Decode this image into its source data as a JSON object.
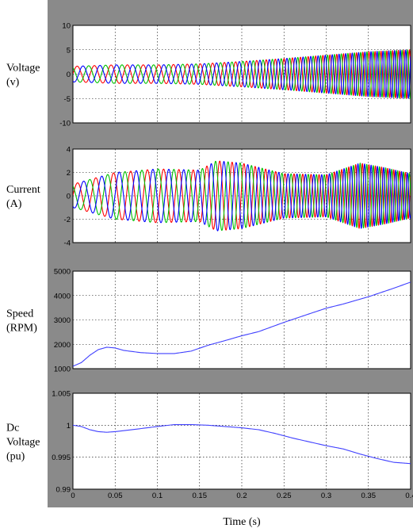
{
  "figure": {
    "xlabel": "Time (s)"
  },
  "colors": {
    "scope_background": "#8a8a8a",
    "phase_a": "#ff0000",
    "phase_b": "#00c000",
    "phase_c": "#0000ff",
    "single_trace": "#4040ff"
  },
  "chart_data": [
    {
      "type": "line",
      "ylabel_lines": [
        "Voltage",
        "(v)"
      ],
      "xlim": [
        0,
        0.4
      ],
      "ylim": [
        -10,
        10
      ],
      "yticks": [
        10,
        5,
        0,
        -5,
        -10
      ],
      "xticks": [],
      "grid": true,
      "description_kind": "three-phase sinusoid",
      "series": [
        {
          "color": "#ff0000",
          "phase_deg": 0
        },
        {
          "color": "#00c000",
          "phase_deg": 120
        },
        {
          "color": "#0000ff",
          "phase_deg": 240
        }
      ],
      "envelope": {
        "t": [
          0,
          0.05,
          0.1,
          0.15,
          0.2,
          0.25,
          0.3,
          0.35,
          0.4
        ],
        "amp": [
          1.6,
          1.9,
          1.9,
          2.1,
          2.6,
          3.2,
          3.9,
          4.6,
          5.0
        ]
      },
      "frequency": {
        "t": [
          0,
          0.1,
          0.2,
          0.3,
          0.4
        ],
        "hz": [
          48,
          55,
          78,
          120,
          155
        ]
      }
    },
    {
      "type": "line",
      "ylabel_lines": [
        "Current",
        "(A)"
      ],
      "xlim": [
        0,
        0.4
      ],
      "ylim": [
        -4,
        4
      ],
      "yticks": [
        4,
        2,
        0,
        -2,
        -4
      ],
      "xticks": [],
      "grid": true,
      "description_kind": "three-phase sinusoid",
      "series": [
        {
          "color": "#ff0000",
          "phase_deg": 0
        },
        {
          "color": "#00c000",
          "phase_deg": 120
        },
        {
          "color": "#0000ff",
          "phase_deg": 240
        }
      ],
      "envelope": {
        "t": [
          0,
          0.02,
          0.05,
          0.1,
          0.15,
          0.17,
          0.2,
          0.25,
          0.3,
          0.34,
          0.37,
          0.4
        ],
        "amp": [
          1.0,
          1.4,
          2.0,
          2.3,
          2.2,
          3.0,
          2.8,
          1.9,
          1.8,
          2.8,
          2.4,
          1.9
        ]
      },
      "frequency": {
        "t": [
          0,
          0.1,
          0.2,
          0.3,
          0.4
        ],
        "hz": [
          45,
          52,
          72,
          110,
          150
        ]
      }
    },
    {
      "type": "line",
      "ylabel_lines": [
        "Speed",
        "(RPM)"
      ],
      "xlim": [
        0,
        0.4
      ],
      "ylim": [
        1000,
        5000
      ],
      "yticks": [
        5000,
        4000,
        3000,
        2000,
        1000
      ],
      "xticks": [],
      "grid": true,
      "series": [
        {
          "color": "#4040ff",
          "x": [
            0,
            0.01,
            0.02,
            0.03,
            0.04,
            0.05,
            0.06,
            0.08,
            0.1,
            0.12,
            0.14,
            0.16,
            0.18,
            0.2,
            0.22,
            0.25,
            0.28,
            0.3,
            0.32,
            0.35,
            0.38,
            0.4
          ],
          "y": [
            1100,
            1250,
            1550,
            1780,
            1880,
            1850,
            1750,
            1660,
            1620,
            1620,
            1720,
            1960,
            2150,
            2350,
            2520,
            2900,
            3250,
            3480,
            3650,
            3950,
            4300,
            4550
          ]
        }
      ]
    },
    {
      "type": "line",
      "ylabel_lines": [
        "Dc",
        "Voltage",
        "(pu)"
      ],
      "xlim": [
        0,
        0.4
      ],
      "ylim": [
        0.99,
        1.005
      ],
      "yticks": [
        1.005,
        1,
        0.995,
        0.99
      ],
      "xticks": [
        0,
        0.05,
        0.1,
        0.15,
        0.2,
        0.25,
        0.3,
        0.35,
        0.4
      ],
      "xtick_labels": [
        "0",
        "0.05",
        "0.1",
        "0.15",
        "0.2",
        "0.25",
        "0.3",
        "0.35",
        "0.4"
      ],
      "grid": true,
      "series": [
        {
          "color": "#4040ff",
          "x": [
            0,
            0.01,
            0.02,
            0.03,
            0.04,
            0.05,
            0.07,
            0.1,
            0.12,
            0.14,
            0.16,
            0.18,
            0.2,
            0.22,
            0.24,
            0.26,
            0.28,
            0.3,
            0.32,
            0.34,
            0.36,
            0.38,
            0.4
          ],
          "y": [
            1.0,
            0.9998,
            0.9993,
            0.999,
            0.9989,
            0.999,
            0.9993,
            0.9998,
            1.0001,
            1.0001,
            1.0,
            0.9998,
            0.9996,
            0.9993,
            0.9987,
            0.998,
            0.9974,
            0.9968,
            0.9963,
            0.9955,
            0.9948,
            0.9942,
            0.994
          ]
        }
      ]
    }
  ]
}
